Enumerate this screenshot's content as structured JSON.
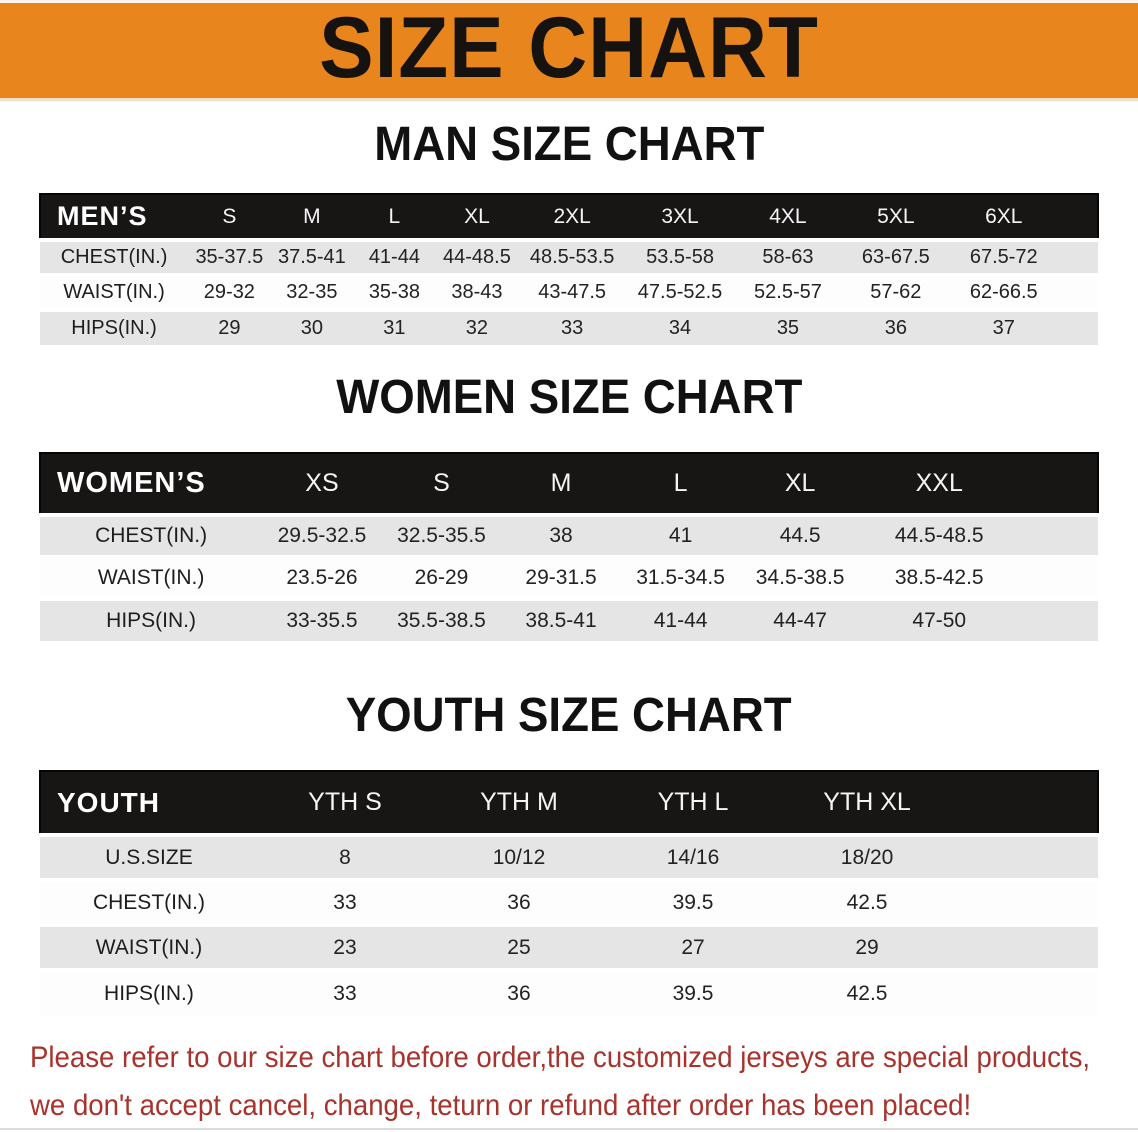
{
  "banner": {
    "title": "SIZE CHART"
  },
  "colors": {
    "banner_bg": "#E8861D",
    "table_header_bg": "#181515",
    "row_alt_bg": "#E5E5E5",
    "footer_text": "#A8322C"
  },
  "sections": [
    {
      "id": "men",
      "title": "MAN SIZE CHART",
      "corner_label": "MEN’S",
      "columns": [
        "S",
        "M",
        "L",
        "XL",
        "2XL",
        "3XL",
        "4XL",
        "5XL",
        "6XL"
      ],
      "rows": [
        {
          "label": "CHEST(IN.)",
          "values": [
            "35-37.5",
            "37.5-41",
            "41-44",
            "44-48.5",
            "48.5-53.5",
            "53.5-58",
            "58-63",
            "63-67.5",
            "67.5-72"
          ]
        },
        {
          "label": "WAIST(IN.)",
          "values": [
            "29-32",
            "32-35",
            "35-38",
            "38-43",
            "43-47.5",
            "47.5-52.5",
            "52.5-57",
            "57-62",
            "62-66.5"
          ]
        },
        {
          "label": "HIPS(IN.)",
          "values": [
            "29",
            "30",
            "31",
            "32",
            "33",
            "34",
            "35",
            "36",
            "37"
          ]
        }
      ]
    },
    {
      "id": "women",
      "title": "WOMEN SIZE CHART",
      "corner_label": "WOMEN’S",
      "columns": [
        "XS",
        "S",
        "M",
        "L",
        "XL",
        "XXL"
      ],
      "rows": [
        {
          "label": "CHEST(IN.)",
          "values": [
            "29.5-32.5",
            "32.5-35.5",
            "38",
            "41",
            "44.5",
            "44.5-48.5"
          ]
        },
        {
          "label": "WAIST(IN.)",
          "values": [
            "23.5-26",
            "26-29",
            "29-31.5",
            "31.5-34.5",
            "34.5-38.5",
            "38.5-42.5"
          ]
        },
        {
          "label": "HIPS(IN.)",
          "values": [
            "33-35.5",
            "35.5-38.5",
            "38.5-41",
            "41-44",
            "44-47",
            "47-50"
          ]
        }
      ]
    },
    {
      "id": "youth",
      "title": "YOUTH SIZE CHART",
      "corner_label": "YOUTH",
      "columns": [
        "YTH S",
        "YTH M",
        "YTH L",
        "YTH XL"
      ],
      "rows": [
        {
          "label": "U.S.SIZE",
          "values": [
            "8",
            "10/12",
            "14/16",
            "18/20"
          ]
        },
        {
          "label": "CHEST(IN.)",
          "values": [
            "33",
            "36",
            "39.5",
            "42.5"
          ]
        },
        {
          "label": "WAIST(IN.)",
          "values": [
            "23",
            "25",
            "27",
            "29"
          ]
        },
        {
          "label": "HIPS(IN.)",
          "values": [
            "33",
            "36",
            "39.5",
            "42.5"
          ]
        }
      ]
    }
  ],
  "footer": {
    "line1": "Please refer to our size chart before order,the customized jerseys are special products,",
    "line2": "we don't accept cancel, change, teturn or refund after order has been placed!"
  }
}
